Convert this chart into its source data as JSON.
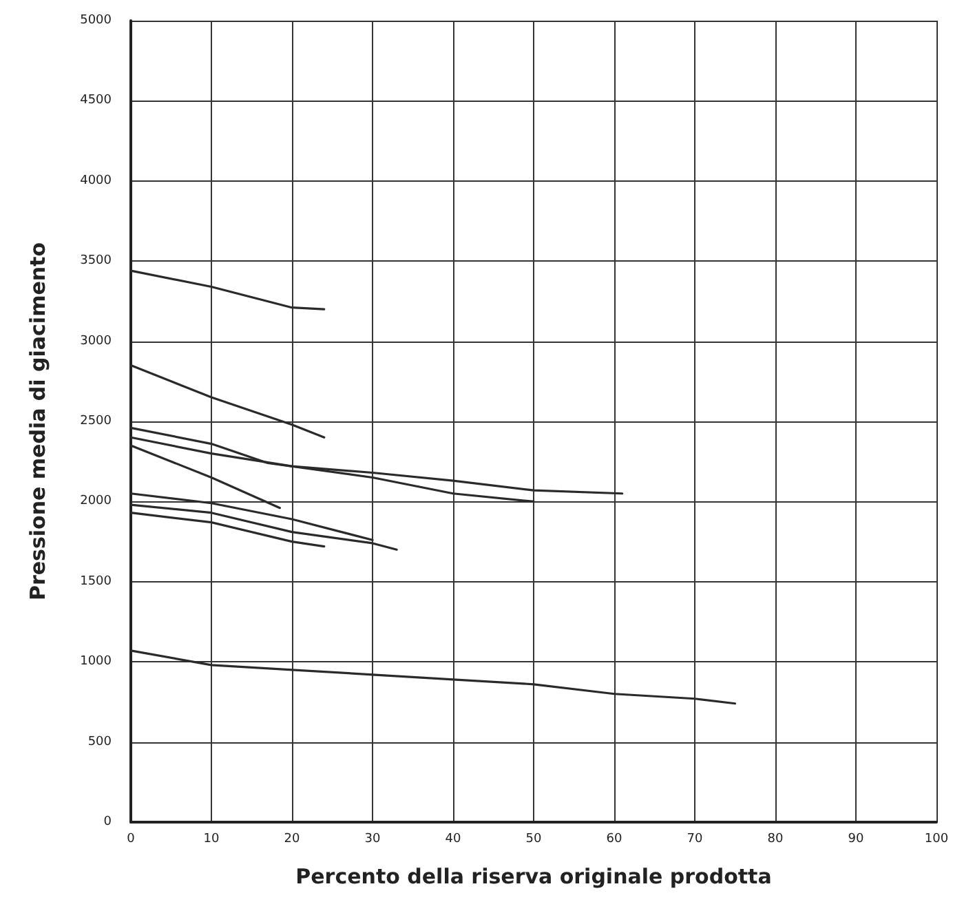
{
  "chart_data": {
    "type": "line",
    "xlabel": "Percento della riserva originale prodotta",
    "ylabel": "Pressione media di giacimento",
    "xlim": [
      0,
      100
    ],
    "xticks": [
      0,
      10,
      20,
      30,
      40,
      50,
      60,
      70,
      80,
      90,
      100
    ],
    "ylim": [
      0,
      5000
    ],
    "yticks": [
      0,
      500,
      1000,
      1500,
      2000,
      2500,
      3000,
      3500,
      4000,
      4500,
      5000
    ],
    "grid": true,
    "marker": "none",
    "line_style": "solid",
    "series": [
      {
        "color": "#2a2a2a",
        "x": [
          0,
          10,
          20,
          24
        ],
        "values": [
          3440,
          3340,
          3210,
          3200
        ]
      },
      {
        "color": "#2a2a2a",
        "x": [
          0,
          5,
          10,
          20,
          24
        ],
        "values": [
          2850,
          2750,
          2650,
          2480,
          2400
        ]
      },
      {
        "color": "#2a2a2a",
        "x": [
          0,
          10,
          17,
          30,
          40,
          50
        ],
        "values": [
          2460,
          2360,
          2240,
          2150,
          2050,
          2000
        ]
      },
      {
        "color": "#2a2a2a",
        "x": [
          0,
          10,
          20,
          30,
          40,
          50,
          61
        ],
        "values": [
          2400,
          2300,
          2220,
          2180,
          2130,
          2070,
          2050
        ]
      },
      {
        "color": "#2a2a2a",
        "x": [
          0,
          10,
          18.5
        ],
        "values": [
          2350,
          2150,
          1960
        ]
      },
      {
        "color": "#2a2a2a",
        "x": [
          0,
          10,
          20,
          30
        ],
        "values": [
          2050,
          1990,
          1890,
          1760
        ]
      },
      {
        "color": "#2a2a2a",
        "x": [
          0,
          10,
          20,
          30,
          33
        ],
        "values": [
          1980,
          1930,
          1810,
          1740,
          1700
        ]
      },
      {
        "color": "#2a2a2a",
        "x": [
          0,
          10,
          20,
          24
        ],
        "values": [
          1930,
          1870,
          1750,
          1720
        ]
      },
      {
        "color": "#2a2a2a",
        "x": [
          0,
          10,
          20,
          30,
          40,
          50,
          60,
          70,
          75
        ],
        "values": [
          1070,
          980,
          950,
          920,
          890,
          860,
          800,
          770,
          740
        ]
      }
    ]
  }
}
